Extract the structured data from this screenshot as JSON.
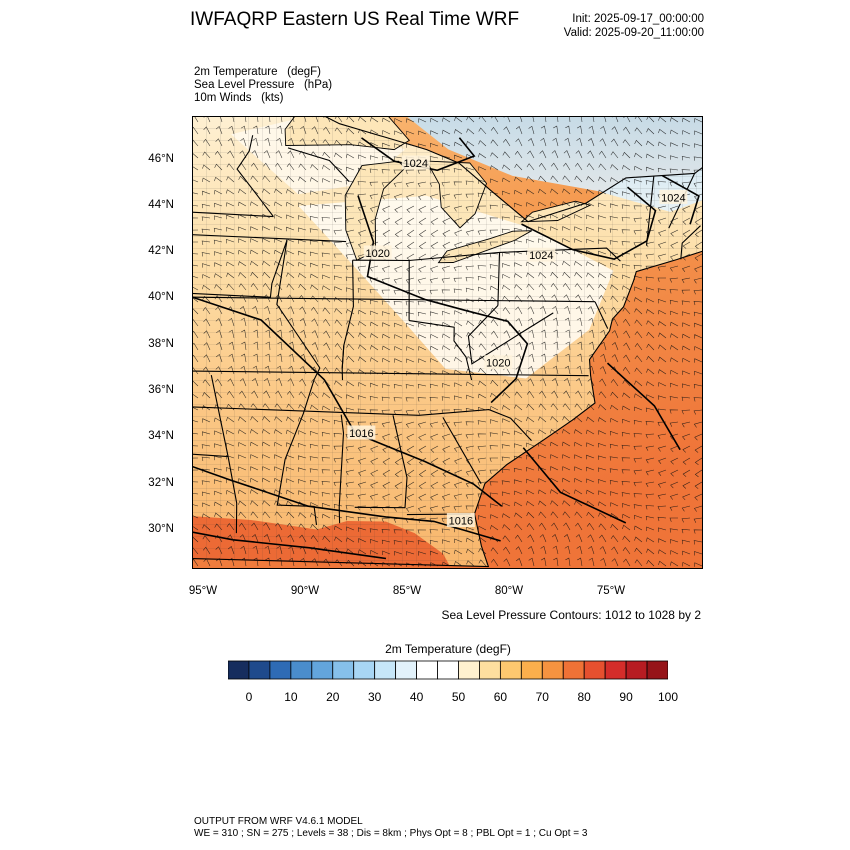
{
  "title": "IWFAQRP Eastern US Real Time WRF",
  "init": "Init: 2025-09-17_00:00:00",
  "valid": "Valid: 2025-09-20_11:00:00",
  "fields": [
    {
      "name": "2m Temperature",
      "units": "(degF)"
    },
    {
      "name": "Sea Level Pressure",
      "units": "(hPa)"
    },
    {
      "name": "10m Winds",
      "units": "(kts)"
    }
  ],
  "map": {
    "lat_labels": [
      "46°N",
      "44°N",
      "42°N",
      "40°N",
      "38°N",
      "36°N",
      "34°N",
      "32°N",
      "30°N"
    ],
    "lon_labels": [
      "95°W",
      "90°W",
      "85°W",
      "80°W",
      "75°W"
    ],
    "pressure_labels": [
      {
        "text": "1024",
        "lat": 45.9,
        "lon": -84.5
      },
      {
        "text": "1024",
        "lat": 44.0,
        "lon": -72.4
      },
      {
        "text": "1020",
        "lat": 42.0,
        "lon": -86.3
      },
      {
        "text": "1024",
        "lat": 41.8,
        "lon": -78.5
      },
      {
        "text": "1020",
        "lat": 37.2,
        "lon": -80.4
      },
      {
        "text": "1016",
        "lat": 34.2,
        "lon": -87.2
      },
      {
        "text": "1016",
        "lat": 30.4,
        "lon": -82.1
      }
    ],
    "shading": {
      "ocean_color": "#f2793b",
      "gulf_color": "#ec6a35",
      "land_warm": "#f9c383",
      "land_mid": "#fde2b0",
      "land_cool": "#ffffff",
      "lakes_color": "#fde6b8",
      "cold_color": "#b9dcf4"
    }
  },
  "contour_note": "Sea Level Pressure Contours: 1012 to 1028 by 2",
  "colorbar": {
    "title": "2m Temperature   (degF)",
    "colors": [
      "#162d5e",
      "#1f4a8c",
      "#2e6bb5",
      "#4a8dcc",
      "#63a5dc",
      "#86c0ea",
      "#a8d6f4",
      "#c6e6f8",
      "#e2f2fb",
      "#ffffff",
      "#ffffff",
      "#fff1cf",
      "#fedf9f",
      "#fdc86f",
      "#fbaf4c",
      "#f59340",
      "#ef7236",
      "#e6502f",
      "#d42d2a",
      "#b71c22",
      "#961419"
    ],
    "labels": [
      "0",
      "10",
      "20",
      "30",
      "40",
      "50",
      "60",
      "70",
      "80",
      "90",
      "100"
    ]
  },
  "footer": {
    "line1": "OUTPUT FROM WRF V4.6.1 MODEL",
    "line2": "WE = 310 ; SN = 275 ; Levels = 38 ; Dis = 8km ; Phys Opt = 8 ; PBL Opt = 1 ; Cu Opt = 3"
  }
}
